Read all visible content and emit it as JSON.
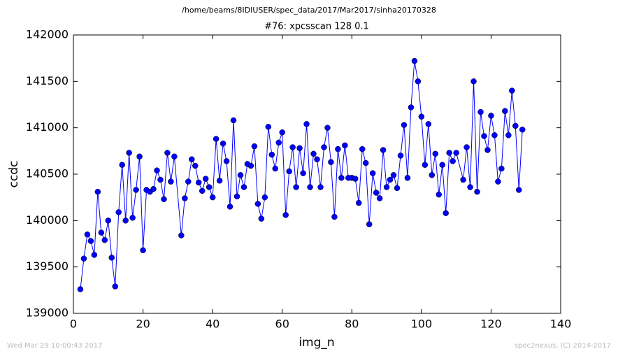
{
  "chart_data": {
    "type": "line",
    "title": "/home/beams/8IDIUSER/spec_data/2017/Mar2017/sinha20170328",
    "subtitle": "#76: xpcsscan 128 0.1",
    "x_label": "img_n",
    "y_label": "ccdc",
    "xlim": [
      0,
      140
    ],
    "xticks": [
      0,
      20,
      40,
      60,
      80,
      100,
      120,
      140
    ],
    "ylim": [
      139000,
      142000
    ],
    "yticks": [
      139000,
      139500,
      140000,
      140500,
      141000,
      141500,
      142000
    ],
    "x": [
      2,
      3,
      4,
      5,
      6,
      7,
      8,
      9,
      10,
      11,
      12,
      13,
      14,
      15,
      16,
      17,
      18,
      19,
      20,
      21,
      22,
      23,
      24,
      25,
      26,
      27,
      28,
      29,
      31,
      32,
      33,
      34,
      35,
      36,
      37,
      38,
      39,
      40,
      41,
      42,
      43,
      44,
      45,
      46,
      47,
      48,
      49,
      50,
      51,
      52,
      53,
      54,
      55,
      56,
      57,
      58,
      59,
      60,
      61,
      62,
      63,
      64,
      65,
      66,
      67,
      68,
      69,
      70,
      71,
      72,
      73,
      74,
      75,
      76,
      77,
      78,
      79,
      80,
      81,
      82,
      83,
      84,
      85,
      86,
      87,
      88,
      89,
      90,
      91,
      92,
      93,
      94,
      95,
      96,
      97,
      98,
      99,
      100,
      101,
      102,
      103,
      104,
      105,
      106,
      107,
      108,
      109,
      110,
      112,
      113,
      114,
      115,
      116,
      117,
      118,
      119,
      120,
      121,
      122,
      123,
      124,
      125,
      126,
      127,
      128,
      129
    ],
    "series": [
      {
        "name": "ccdc",
        "color": "#0000ff",
        "values": [
          139260,
          139590,
          139850,
          139780,
          139630,
          140310,
          139870,
          139790,
          140000,
          139600,
          139290,
          140090,
          140600,
          140000,
          140730,
          140030,
          140330,
          140690,
          139680,
          140330,
          140310,
          140340,
          140540,
          140440,
          140230,
          140730,
          140420,
          140690,
          139840,
          140240,
          140420,
          140660,
          140590,
          140410,
          140320,
          140450,
          140360,
          140250,
          140880,
          140430,
          140830,
          140640,
          140150,
          141080,
          140260,
          140490,
          140360,
          140610,
          140590,
          140800,
          140180,
          140020,
          140250,
          141010,
          140710,
          140560,
          140840,
          140950,
          140060,
          140530,
          140790,
          140360,
          140780,
          140510,
          141040,
          140360,
          140720,
          140660,
          140360,
          140790,
          141000,
          140630,
          140040,
          140770,
          140460,
          140810,
          140460,
          140460,
          140450,
          140190,
          140770,
          140620,
          139960,
          140510,
          140300,
          140240,
          140760,
          140360,
          140440,
          140490,
          140350,
          140700,
          141030,
          140460,
          141220,
          141720,
          141500,
          141120,
          140600,
          141040,
          140490,
          140720,
          140280,
          140600,
          140080,
          140730,
          140640,
          140730,
          140440,
          140790,
          140360,
          141500,
          140310,
          141170,
          140910,
          140760,
          141130,
          140920,
          140420,
          140560,
          141180,
          140920,
          141400,
          141020,
          140330,
          140980
        ]
      }
    ]
  },
  "footer": {
    "left": "Wed Mar 29 10:00:43 2017",
    "right": "spec2nexus, (C) 2014-2017"
  }
}
